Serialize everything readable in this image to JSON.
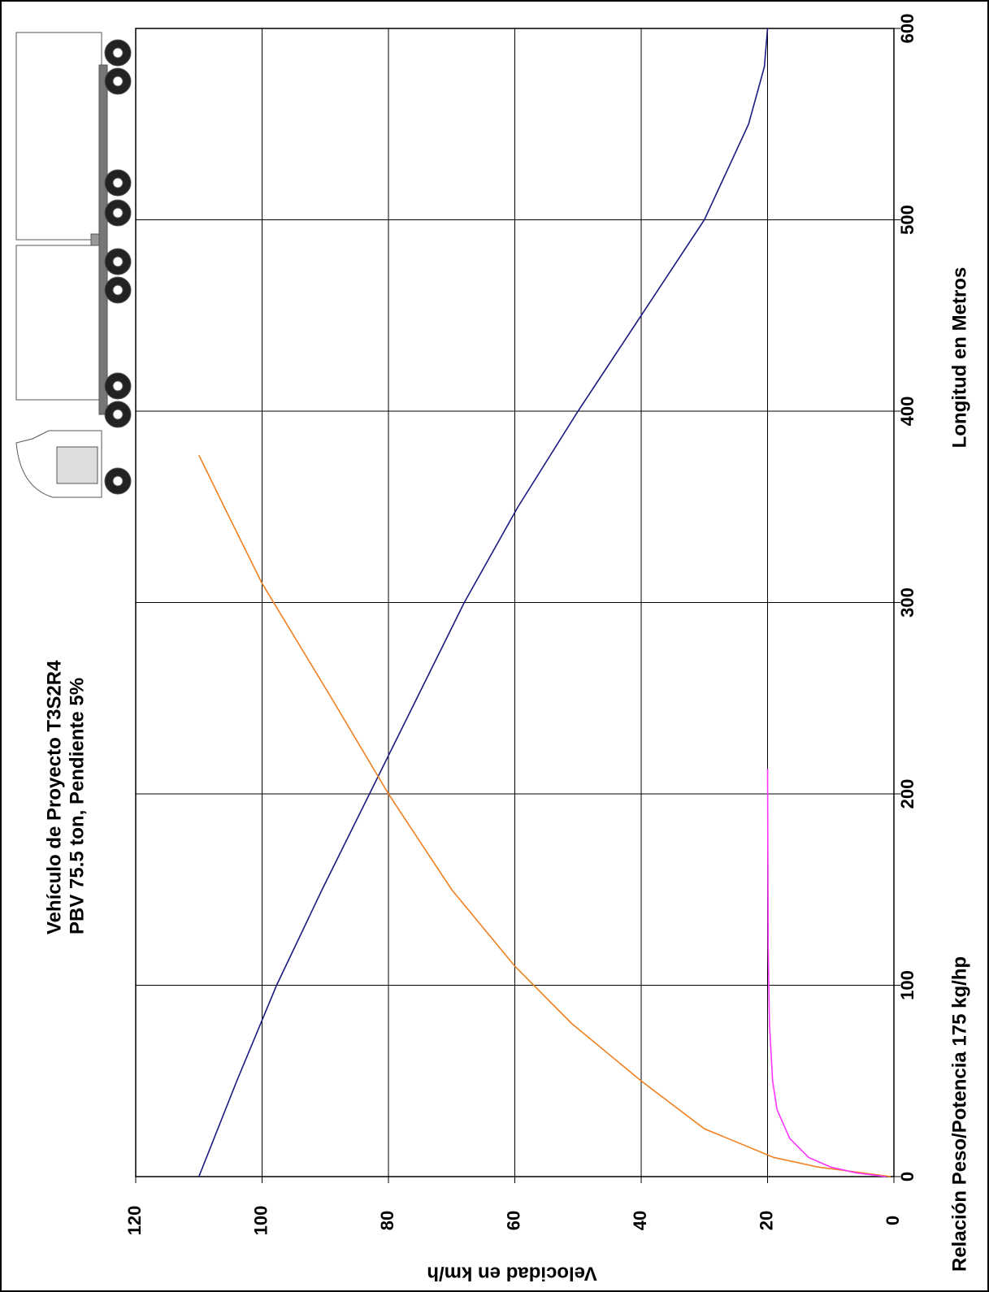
{
  "chart_data": {
    "type": "line",
    "title": "Vehículo de Proyecto T3S2R4",
    "subtitle": "PBV 75.5 ton, Pendiente  5%",
    "x_label": "Longitud en Metros",
    "y_label": "Velocidad en km/h",
    "annotation": "Relación Peso/Potencia 175 kg/hp",
    "xlim": [
      0,
      600
    ],
    "xticks": [
      0,
      100,
      200,
      300,
      400,
      500,
      600
    ],
    "ylim": [
      0,
      120
    ],
    "yticks": [
      0,
      20,
      40,
      60,
      80,
      100,
      120
    ],
    "grid": true,
    "series": [
      {
        "color": "#1a1a80",
        "x": [
          0,
          50,
          100,
          150,
          200,
          250,
          300,
          350,
          400,
          450,
          500,
          550,
          580,
          600
        ],
        "values": [
          110,
          104,
          97.7,
          90.5,
          83,
          75.5,
          68,
          59.5,
          50,
          40,
          30,
          23,
          20.5,
          20
        ]
      },
      {
        "color": "#f08020",
        "x": [
          0,
          5,
          10,
          25,
          50,
          80,
          110,
          150,
          200,
          250,
          310,
          350,
          377
        ],
        "values": [
          0.5,
          12,
          19,
          30,
          40,
          51,
          60,
          70,
          80,
          89,
          100,
          106,
          110
        ]
      },
      {
        "color": "#ff33ff",
        "x": [
          0,
          2,
          5,
          10,
          20,
          35,
          50,
          80,
          120,
          213
        ],
        "values": [
          1.3,
          6,
          10,
          13.5,
          16.5,
          18.5,
          19.2,
          19.7,
          19.9,
          20
        ]
      }
    ]
  }
}
